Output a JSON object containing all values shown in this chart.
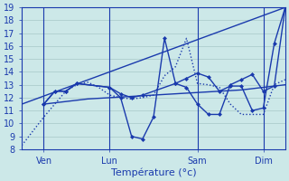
{
  "xlabel": "Température (°c)",
  "bg_color": "#cce8e8",
  "line_color": "#1a3aad",
  "grid_color": "#a8c8c8",
  "ylim": [
    8,
    19
  ],
  "yticks": [
    8,
    9,
    10,
    11,
    12,
    13,
    14,
    15,
    16,
    17,
    18,
    19
  ],
  "xlim": [
    0,
    24
  ],
  "vlines_x": [
    2,
    8,
    16,
    22
  ],
  "vlines_labels": [
    "Ven",
    "Lun",
    "Sam",
    "Dim"
  ],
  "series_dotted": {
    "x": [
      0,
      1,
      2,
      3,
      4,
      5,
      6,
      7,
      8,
      9,
      10,
      11,
      12,
      13,
      14,
      15,
      16,
      17,
      18,
      19,
      20,
      21,
      22,
      23,
      24
    ],
    "y": [
      8.3,
      9.4,
      10.5,
      11.5,
      12.5,
      13.0,
      13.2,
      12.8,
      12.2,
      12.0,
      11.9,
      12.0,
      12.2,
      13.7,
      14.4,
      16.6,
      13.1,
      13.0,
      12.8,
      11.5,
      10.7,
      10.7,
      10.7,
      13.0,
      13.4
    ]
  },
  "series_straight": {
    "x": [
      0,
      24
    ],
    "y": [
      11.5,
      19.0
    ]
  },
  "series_flat": {
    "x": [
      2,
      4,
      6,
      8,
      10,
      12,
      14,
      16,
      18,
      20,
      22,
      24
    ],
    "y": [
      11.5,
      11.7,
      11.9,
      12.0,
      12.1,
      12.2,
      12.3,
      12.4,
      12.5,
      12.6,
      12.8,
      13.0
    ]
  },
  "series_marker": {
    "x": [
      2,
      3,
      4,
      5,
      8,
      9,
      10,
      11,
      12,
      13,
      14,
      15,
      16,
      17,
      18,
      19,
      20,
      21,
      22,
      23,
      24
    ],
    "y": [
      11.5,
      12.5,
      12.5,
      13.1,
      12.8,
      12.0,
      9.0,
      8.8,
      10.5,
      16.6,
      13.1,
      12.8,
      11.5,
      10.7,
      10.7,
      13.0,
      13.4,
      13.8,
      12.5,
      12.9,
      19.0
    ]
  },
  "series_marker2": {
    "x": [
      2,
      3,
      4,
      5,
      8,
      9,
      10,
      11,
      14,
      15,
      16,
      17,
      18,
      19,
      20,
      21,
      22,
      23,
      24
    ],
    "y": [
      11.5,
      12.5,
      12.5,
      13.1,
      12.8,
      12.3,
      12.0,
      12.2,
      13.1,
      13.5,
      13.9,
      13.6,
      12.5,
      12.9,
      12.9,
      11.0,
      11.2,
      16.2,
      19.0
    ]
  }
}
